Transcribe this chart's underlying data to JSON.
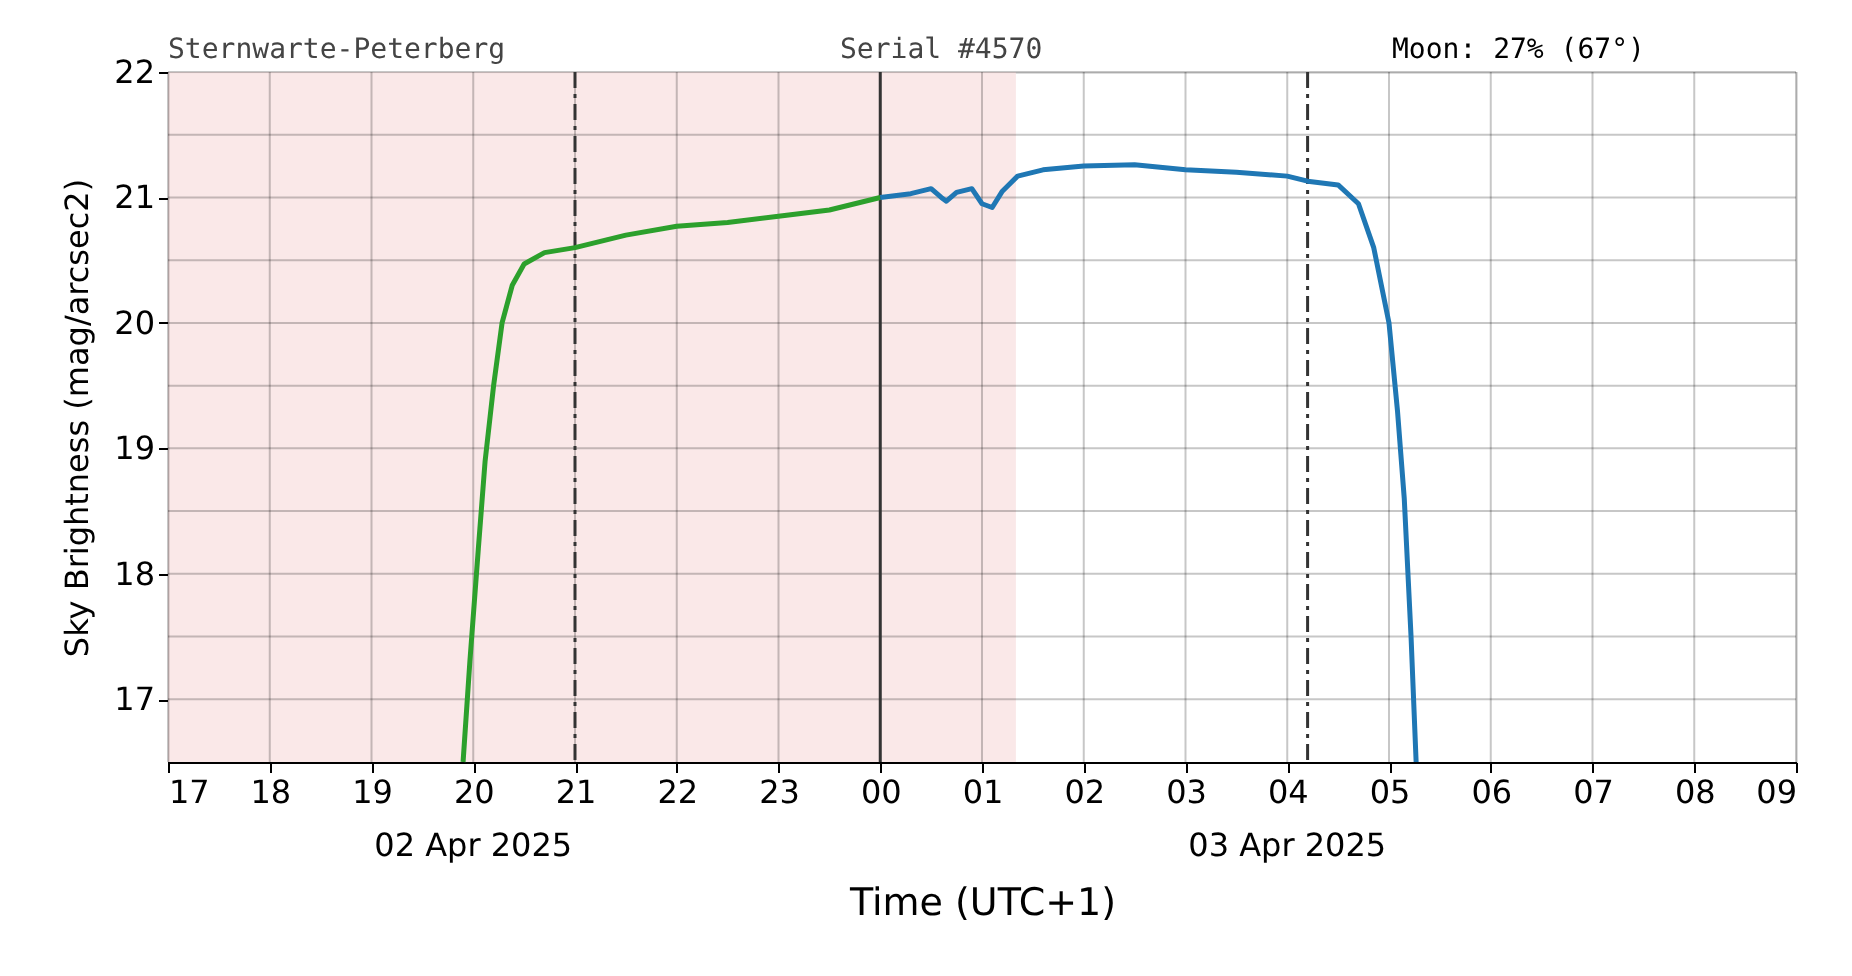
{
  "chart_data": {
    "type": "line",
    "ylabel": "Sky Brightness (mag/arcsec2)",
    "xlabel": "Time (UTC+1)",
    "annotations": [
      "Sternwarte-Peterberg",
      "Serial #4570",
      "Moon: 27% (67°)",
      "02 Apr 2025",
      "03 Apr 2025"
    ],
    "xlim": [
      "2025-04-02T17:00",
      "2025-04-03T09:00"
    ],
    "xticks": [
      {
        "value": "2025-04-02T17:00",
        "label": "17"
      },
      {
        "value": "2025-04-02T18:00",
        "label": "18"
      },
      {
        "value": "2025-04-02T19:00",
        "label": "19"
      },
      {
        "value": "2025-04-02T20:00",
        "label": "20"
      },
      {
        "value": "2025-04-02T21:00",
        "label": "21"
      },
      {
        "value": "2025-04-02T22:00",
        "label": "22"
      },
      {
        "value": "2025-04-02T23:00",
        "label": "23"
      },
      {
        "value": "2025-04-03T00:00",
        "label": "00"
      },
      {
        "value": "2025-04-03T01:00",
        "label": "01"
      },
      {
        "value": "2025-04-03T02:00",
        "label": "02"
      },
      {
        "value": "2025-04-03T03:00",
        "label": "03"
      },
      {
        "value": "2025-04-03T04:00",
        "label": "04"
      },
      {
        "value": "2025-04-03T05:00",
        "label": "05"
      },
      {
        "value": "2025-04-03T06:00",
        "label": "06"
      },
      {
        "value": "2025-04-03T07:00",
        "label": "07"
      },
      {
        "value": "2025-04-03T08:00",
        "label": "08"
      },
      {
        "value": "2025-04-03T09:00",
        "label": "09"
      }
    ],
    "ylim": [
      16.5,
      22
    ],
    "yticks": [
      17,
      {
        "value": 17.5,
        "label": null
      },
      18,
      {
        "value": 18.5,
        "label": null
      },
      19,
      {
        "value": 19.5,
        "label": null
      },
      20,
      {
        "value": 20.5,
        "label": null
      },
      21,
      {
        "value": 21.5,
        "label": null
      },
      22
    ],
    "grid": true,
    "series": [
      {
        "color": "#2ca02c",
        "x": [
          "2025-04-02T19:54",
          "2025-04-02T19:58",
          "2025-04-02T20:03",
          "2025-04-02T20:07",
          "2025-04-02T20:12",
          "2025-04-02T20:17",
          "2025-04-02T20:23",
          "2025-04-02T20:30",
          "2025-04-02T20:42",
          "2025-04-02T21:00",
          "2025-04-02T21:30",
          "2025-04-02T22:00",
          "2025-04-02T22:30",
          "2025-04-02T23:00",
          "2025-04-02T23:30",
          "2025-04-03T00:00"
        ],
        "values": [
          16.5,
          17.3,
          18.2,
          18.9,
          19.5,
          20.0,
          20.3,
          20.47,
          20.56,
          20.6,
          20.7,
          20.77,
          20.8,
          20.85,
          20.9,
          21.0
        ]
      },
      {
        "color": "#1f77b4",
        "x": [
          "2025-04-03T00:00",
          "2025-04-03T00:18",
          "2025-04-03T00:30",
          "2025-04-03T00:36",
          "2025-04-03T00:39",
          "2025-04-03T00:45",
          "2025-04-03T00:54",
          "2025-04-03T01:00",
          "2025-04-03T01:06",
          "2025-04-03T01:12",
          "2025-04-03T01:21",
          "2025-04-03T01:36",
          "2025-04-03T02:00",
          "2025-04-03T02:30",
          "2025-04-03T03:00",
          "2025-04-03T03:30",
          "2025-04-03T04:00",
          "2025-04-03T04:12",
          "2025-04-03T04:30",
          "2025-04-03T04:42",
          "2025-04-03T04:51",
          "2025-04-03T05:00",
          "2025-04-03T05:05",
          "2025-04-03T05:09",
          "2025-04-03T05:13",
          "2025-04-03T05:16"
        ],
        "values": [
          21.0,
          21.03,
          21.07,
          21.0,
          20.97,
          21.04,
          21.07,
          20.95,
          20.92,
          21.05,
          21.17,
          21.22,
          21.25,
          21.26,
          21.22,
          21.2,
          21.17,
          21.13,
          21.1,
          20.95,
          20.6,
          20.0,
          19.3,
          18.6,
          17.5,
          16.5
        ]
      }
    ],
    "ref_lines": [
      {
        "axis": "x",
        "value": "2025-04-02T21:00",
        "line_style": "dashed",
        "color": "#333333"
      },
      {
        "axis": "x",
        "value": "2025-04-03T00:00",
        "line_style": "solid",
        "color": "#333333"
      },
      {
        "axis": "x",
        "value": "2025-04-03T04:12",
        "line_style": "dashed",
        "color": "#333333"
      }
    ],
    "bands": [
      {
        "axis": "x",
        "from": "2025-04-02T17:00",
        "to": "2025-04-03T01:20",
        "color": "#f9e6e6"
      }
    ]
  }
}
